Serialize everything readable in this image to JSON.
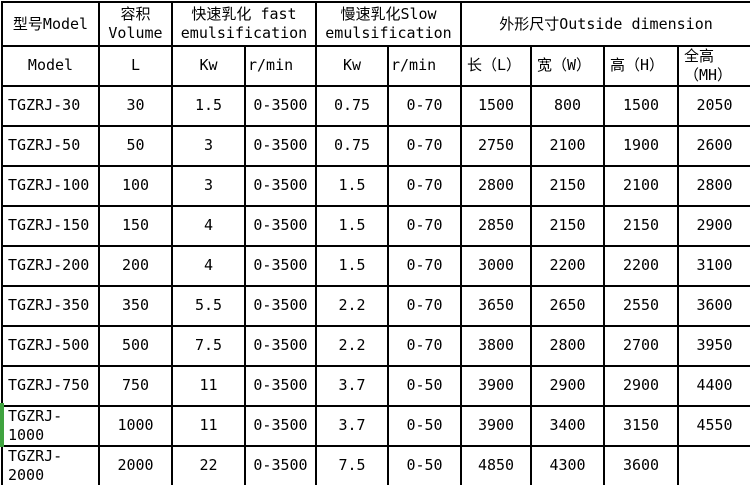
{
  "colors": {
    "border": "#000000",
    "background": "#ffffff",
    "text": "#000000",
    "selection_marker_green": "#3fa33f"
  },
  "table": {
    "header": {
      "row1": [
        {
          "label": "型号Model",
          "colspan": "1"
        },
        {
          "label": "容积\nVolume",
          "colspan": "1"
        },
        {
          "label": "快速乳化 fast\nemulsification",
          "colspan": "2"
        },
        {
          "label": "慢速乳化Slow\nemulsification",
          "colspan": "2"
        },
        {
          "label": "外形尺寸Outside dimension",
          "colspan": "4"
        }
      ],
      "row2": [
        "Model",
        "L",
        "Kw",
        "r/min",
        "Kw",
        "r/min",
        "长（L）",
        "宽（W）",
        "高（H）",
        "全高\n（MH）"
      ]
    },
    "rows": [
      [
        "TGZRJ-30",
        "30",
        "1.5",
        "0-3500",
        "0.75",
        "0-70",
        "1500",
        "800",
        "1500",
        "2050"
      ],
      [
        "TGZRJ-50",
        "50",
        "3",
        "0-3500",
        "0.75",
        "0-70",
        "2750",
        "2100",
        "1900",
        "2600"
      ],
      [
        "TGZRJ-100",
        "100",
        "3",
        "0-3500",
        "1.5",
        "0-70",
        "2800",
        "2150",
        "2100",
        "2800"
      ],
      [
        "TGZRJ-150",
        "150",
        "4",
        "0-3500",
        "1.5",
        "0-70",
        "2850",
        "2150",
        "2150",
        "2900"
      ],
      [
        "TGZRJ-200",
        "200",
        "4",
        "0-3500",
        "1.5",
        "0-70",
        "3000",
        "2200",
        "2200",
        "3100"
      ],
      [
        "TGZRJ-350",
        "350",
        "5.5",
        "0-3500",
        "2.2",
        "0-70",
        "3650",
        "2650",
        "2550",
        "3600"
      ],
      [
        "TGZRJ-500",
        "500",
        "7.5",
        "0-3500",
        "2.2",
        "0-70",
        "3800",
        "2800",
        "2700",
        "3950"
      ],
      [
        "TGZRJ-750",
        "750",
        "11",
        "0-3500",
        "3.7",
        "0-50",
        "3900",
        "2900",
        "2900",
        "4400"
      ],
      [
        "TGZRJ-1000",
        "1000",
        "11",
        "0-3500",
        "3.7",
        "0-50",
        "3900",
        "3400",
        "3150",
        "4550"
      ],
      [
        "TGZRJ-2000",
        "2000",
        "22",
        "0-3500",
        "7.5",
        "0-50",
        "4850",
        "4300",
        "3600",
        ""
      ]
    ]
  }
}
